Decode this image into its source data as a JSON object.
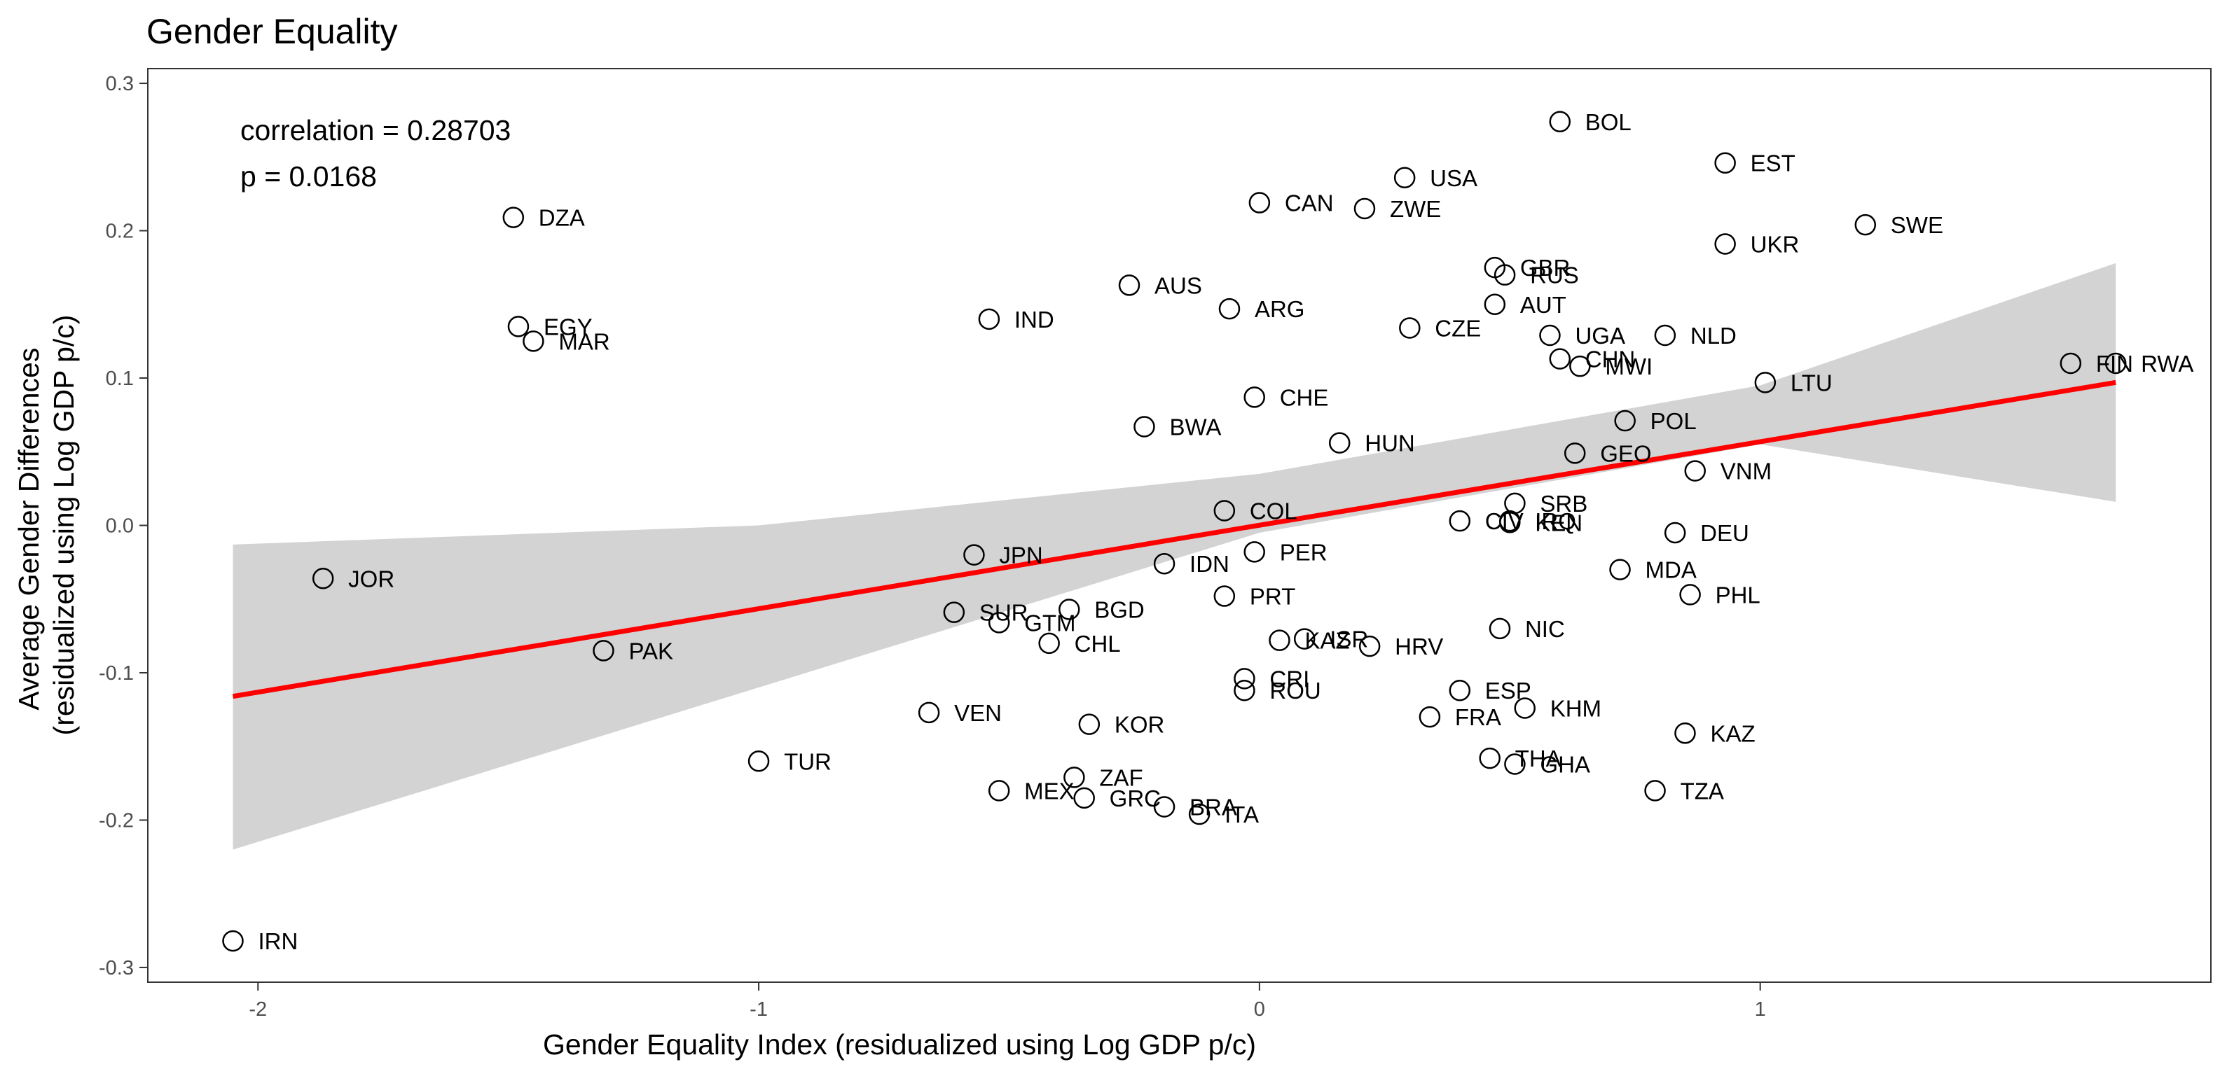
{
  "chart_data": {
    "type": "scatter",
    "title": "Gender Equality",
    "xlabel": "Gender Equality Index (residualized using Log GDP p/c)",
    "ylabel_lines": [
      "Average Gender Differences",
      "(residualized using Log GDP p/c)"
    ],
    "xlim": [
      -2.22,
      1.9
    ],
    "ylim": [
      -0.31,
      0.31
    ],
    "xticks": [
      -2,
      -1,
      0,
      1
    ],
    "xtick_labels": [
      "-2",
      "-1",
      "0",
      "1"
    ],
    "yticks": [
      -0.3,
      -0.2,
      -0.1,
      0.0,
      0.1,
      0.2,
      0.3
    ],
    "ytick_labels": [
      "-0.3",
      "-0.2",
      "-0.1",
      "0.0",
      "0.1",
      "0.2",
      "0.3"
    ],
    "grid": false,
    "annotations": [
      "correlation = 0.28703",
      "p = 0.0168"
    ],
    "colors": {
      "fit_line": "#ff0000",
      "confidence_band": "#d3d3d3",
      "points": "#000000",
      "frame": "#333333"
    },
    "fit_line": {
      "x": [
        -2.05,
        1.71
      ],
      "y": [
        -0.116,
        0.097
      ]
    },
    "confidence_band": {
      "x": [
        -2.05,
        -1.0,
        0.0,
        1.0,
        1.71
      ],
      "lower": [
        -0.22,
        -0.11,
        -0.005,
        0.055,
        0.016
      ],
      "upper": [
        -0.013,
        0.0,
        0.035,
        0.095,
        0.178
      ]
    },
    "points": [
      {
        "label": "BOL",
        "x": 0.6,
        "y": 0.274
      },
      {
        "label": "EST",
        "x": 0.93,
        "y": 0.246
      },
      {
        "label": "USA",
        "x": 0.29,
        "y": 0.236
      },
      {
        "label": "CAN",
        "x": 0.0,
        "y": 0.219
      },
      {
        "label": "ZWE",
        "x": 0.21,
        "y": 0.215
      },
      {
        "label": "DZA",
        "x": -1.49,
        "y": 0.209
      },
      {
        "label": "SWE",
        "x": 1.21,
        "y": 0.204
      },
      {
        "label": "UKR",
        "x": 0.93,
        "y": 0.191
      },
      {
        "label": "GBR",
        "x": 0.47,
        "y": 0.175
      },
      {
        "label": "RUS",
        "x": 0.49,
        "y": 0.17
      },
      {
        "label": "AUS",
        "x": -0.26,
        "y": 0.163
      },
      {
        "label": "AUT",
        "x": 0.47,
        "y": 0.15
      },
      {
        "label": "ARG",
        "x": -0.06,
        "y": 0.147
      },
      {
        "label": "IND",
        "x": -0.54,
        "y": 0.14
      },
      {
        "label": "EGY",
        "x": -1.48,
        "y": 0.135
      },
      {
        "label": "CZE",
        "x": 0.3,
        "y": 0.134
      },
      {
        "label": "UGA",
        "x": 0.58,
        "y": 0.129
      },
      {
        "label": "NLD",
        "x": 0.81,
        "y": 0.129
      },
      {
        "label": "MAR",
        "x": -1.45,
        "y": 0.125
      },
      {
        "label": "CHN",
        "x": 0.6,
        "y": 0.113
      },
      {
        "label": "FIN",
        "x": 1.62,
        "y": 0.11
      },
      {
        "label": "RWA",
        "x": 1.71,
        "y": 0.11
      },
      {
        "label": "MWI",
        "x": 0.64,
        "y": 0.108
      },
      {
        "label": "LTU",
        "x": 1.01,
        "y": 0.097
      },
      {
        "label": "CHE",
        "x": -0.01,
        "y": 0.087
      },
      {
        "label": "POL",
        "x": 0.73,
        "y": 0.071
      },
      {
        "label": "BWA",
        "x": -0.23,
        "y": 0.067
      },
      {
        "label": "HUN",
        "x": 0.16,
        "y": 0.056
      },
      {
        "label": "GEO",
        "x": 0.63,
        "y": 0.049
      },
      {
        "label": "VNM",
        "x": 0.87,
        "y": 0.037
      },
      {
        "label": "SRB",
        "x": 0.51,
        "y": 0.015
      },
      {
        "label": "COL",
        "x": -0.07,
        "y": 0.01
      },
      {
        "label": "CIV",
        "x": 0.4,
        "y": 0.003
      },
      {
        "label": "IRQ",
        "x": 0.5,
        "y": 0.003
      },
      {
        "label": "KEN",
        "x": 0.5,
        "y": 0.002
      },
      {
        "label": "DEU",
        "x": 0.83,
        "y": -0.005
      },
      {
        "label": "JPN",
        "x": -0.57,
        "y": -0.02
      },
      {
        "label": "PER",
        "x": -0.01,
        "y": -0.018
      },
      {
        "label": "IDN",
        "x": -0.19,
        "y": -0.026
      },
      {
        "label": "MDA",
        "x": 0.72,
        "y": -0.03
      },
      {
        "label": "JOR",
        "x": -1.87,
        "y": -0.036
      },
      {
        "label": "PRT",
        "x": -0.07,
        "y": -0.048
      },
      {
        "label": "PHL",
        "x": 0.86,
        "y": -0.047
      },
      {
        "label": "BGD",
        "x": -0.38,
        "y": -0.057
      },
      {
        "label": "SUR",
        "x": -0.61,
        "y": -0.059
      },
      {
        "label": "GTM",
        "x": -0.52,
        "y": -0.066
      },
      {
        "label": "NIC",
        "x": 0.48,
        "y": -0.07
      },
      {
        "label": "ISR",
        "x": 0.09,
        "y": -0.077
      },
      {
        "label": "KAZ",
        "x": 0.04,
        "y": -0.078
      },
      {
        "label": "CHL",
        "x": -0.42,
        "y": -0.08
      },
      {
        "label": "HRV",
        "x": 0.22,
        "y": -0.082
      },
      {
        "label": "PAK",
        "x": -1.31,
        "y": -0.085
      },
      {
        "label": "CRI",
        "x": -0.03,
        "y": -0.104
      },
      {
        "label": "ROU",
        "x": -0.03,
        "y": -0.112
      },
      {
        "label": "ESP",
        "x": 0.4,
        "y": -0.112
      },
      {
        "label": "KHM",
        "x": 0.53,
        "y": -0.124
      },
      {
        "label": "VEN",
        "x": -0.66,
        "y": -0.127
      },
      {
        "label": "FRA",
        "x": 0.34,
        "y": -0.13
      },
      {
        "label": "KOR",
        "x": -0.34,
        "y": -0.135
      },
      {
        "label": "KAZ",
        "x": 0.85,
        "y": -0.141
      },
      {
        "label": "THA",
        "x": 0.46,
        "y": -0.158
      },
      {
        "label": "TUR",
        "x": -1.0,
        "y": -0.16
      },
      {
        "label": "GHA",
        "x": 0.51,
        "y": -0.162
      },
      {
        "label": "ZAF",
        "x": -0.37,
        "y": -0.171
      },
      {
        "label": "MEX",
        "x": -0.52,
        "y": -0.18
      },
      {
        "label": "TZA",
        "x": 0.79,
        "y": -0.18
      },
      {
        "label": "GRC",
        "x": -0.35,
        "y": -0.185
      },
      {
        "label": "BRA",
        "x": -0.19,
        "y": -0.191
      },
      {
        "label": "ITA",
        "x": -0.12,
        "y": -0.196
      },
      {
        "label": "IRN",
        "x": -2.05,
        "y": -0.282
      }
    ]
  }
}
